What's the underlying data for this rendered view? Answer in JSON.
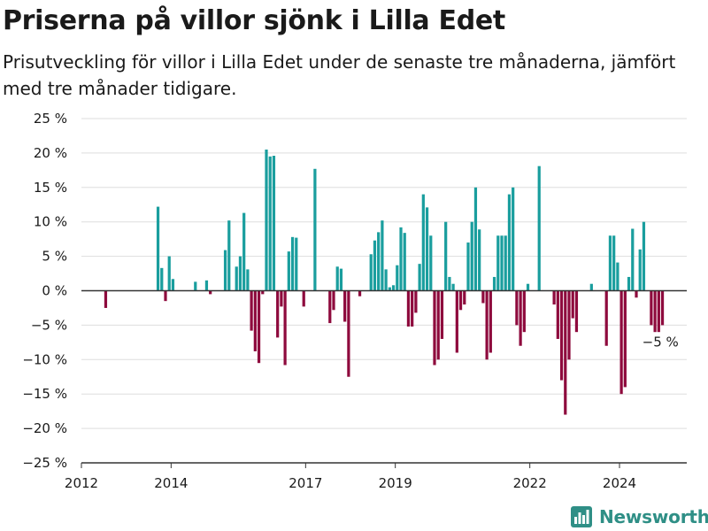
{
  "colors": {
    "positive": "#1a9e9e",
    "negative": "#8e0a3d",
    "grid": "#dddddd",
    "axis": "#333333",
    "brand": "#2f8f86"
  },
  "brand": {
    "name": "Newsworthy",
    "icon": "bar-chart-logo-icon"
  },
  "chart_data": {
    "type": "bar",
    "title": "Priserna på villor sjönk i Lilla Edet",
    "subtitle": "Prisutveckling för villor i Lilla Edet under de senaste tre månaderna, jämfört med tre månader tidigare.",
    "xlabel": "",
    "ylabel": "",
    "ylim": [
      -25,
      25
    ],
    "yticks": [
      -25,
      -20,
      -15,
      -10,
      -5,
      0,
      5,
      10,
      15,
      20,
      25
    ],
    "ytick_labels": [
      "−25 %",
      "−20 %",
      "−15 %",
      "−10 %",
      "−5 %",
      "0 %",
      "5 %",
      "10 %",
      "15 %",
      "20 %",
      "25 %"
    ],
    "xlim": [
      "2012-01",
      "2025-07"
    ],
    "xticks": [
      "2012-01",
      "2014-01",
      "2017-01",
      "2019-01",
      "2022-01",
      "2024-01"
    ],
    "xtick_labels": [
      "2012",
      "2014",
      "2017",
      "2019",
      "2022",
      "2024"
    ],
    "grid": "horizontal",
    "annotation": {
      "text": "−5 %",
      "x": "2024-11",
      "y": -5
    },
    "series": [
      {
        "data": [
          [
            "2012-07",
            -2.5
          ],
          [
            "2013-09",
            12.2
          ],
          [
            "2013-10",
            3.3
          ],
          [
            "2013-11",
            -1.5
          ],
          [
            "2013-12",
            5.0
          ],
          [
            "2014-01",
            1.7
          ],
          [
            "2014-07",
            1.3
          ],
          [
            "2014-10",
            1.5
          ],
          [
            "2014-11",
            -0.5
          ],
          [
            "2015-03",
            5.9
          ],
          [
            "2015-04",
            10.2
          ],
          [
            "2015-06",
            3.5
          ],
          [
            "2015-07",
            5.0
          ],
          [
            "2015-08",
            11.3
          ],
          [
            "2015-09",
            3.1
          ],
          [
            "2015-10",
            -5.8
          ],
          [
            "2015-11",
            -8.8
          ],
          [
            "2015-12",
            -10.5
          ],
          [
            "2016-01",
            -0.5
          ],
          [
            "2016-02",
            20.5
          ],
          [
            "2016-03",
            19.5
          ],
          [
            "2016-04",
            19.6
          ],
          [
            "2016-05",
            -6.8
          ],
          [
            "2016-06",
            -2.3
          ],
          [
            "2016-07",
            -10.8
          ],
          [
            "2016-08",
            5.7
          ],
          [
            "2016-09",
            7.8
          ],
          [
            "2016-10",
            7.7
          ],
          [
            "2016-12",
            -2.3
          ],
          [
            "2017-03",
            17.7
          ],
          [
            "2017-07",
            -4.7
          ],
          [
            "2017-08",
            -2.8
          ],
          [
            "2017-09",
            3.5
          ],
          [
            "2017-10",
            3.2
          ],
          [
            "2017-11",
            -4.5
          ],
          [
            "2017-12",
            -12.5
          ],
          [
            "2018-03",
            -0.8
          ],
          [
            "2018-06",
            5.3
          ],
          [
            "2018-07",
            7.3
          ],
          [
            "2018-08",
            8.5
          ],
          [
            "2018-09",
            10.2
          ],
          [
            "2018-10",
            3.1
          ],
          [
            "2018-11",
            0.5
          ],
          [
            "2018-12",
            0.8
          ],
          [
            "2019-01",
            3.7
          ],
          [
            "2019-02",
            9.2
          ],
          [
            "2019-03",
            8.4
          ],
          [
            "2019-04",
            -5.2
          ],
          [
            "2019-05",
            -5.2
          ],
          [
            "2019-06",
            -3.2
          ],
          [
            "2019-07",
            3.9
          ],
          [
            "2019-08",
            14.0
          ],
          [
            "2019-09",
            12.1
          ],
          [
            "2019-10",
            8.0
          ],
          [
            "2019-11",
            -10.8
          ],
          [
            "2019-12",
            -10.0
          ],
          [
            "2020-01",
            -7.0
          ],
          [
            "2020-02",
            10.0
          ],
          [
            "2020-03",
            2.0
          ],
          [
            "2020-04",
            1.0
          ],
          [
            "2020-05",
            -9.0
          ],
          [
            "2020-06",
            -2.8
          ],
          [
            "2020-07",
            -2.0
          ],
          [
            "2020-08",
            7.0
          ],
          [
            "2020-09",
            10.0
          ],
          [
            "2020-10",
            15.0
          ],
          [
            "2020-11",
            8.9
          ],
          [
            "2020-12",
            -1.8
          ],
          [
            "2021-01",
            -10.0
          ],
          [
            "2021-02",
            -9.0
          ],
          [
            "2021-03",
            2.0
          ],
          [
            "2021-04",
            8.0
          ],
          [
            "2021-05",
            8.0
          ],
          [
            "2021-06",
            8.0
          ],
          [
            "2021-07",
            14.0
          ],
          [
            "2021-08",
            15.0
          ],
          [
            "2021-09",
            -5.0
          ],
          [
            "2021-10",
            -8.0
          ],
          [
            "2021-11",
            -6.0
          ],
          [
            "2021-12",
            1.0
          ],
          [
            "2022-03",
            18.1
          ],
          [
            "2022-07",
            -2.0
          ],
          [
            "2022-08",
            -7.0
          ],
          [
            "2022-09",
            -13.0
          ],
          [
            "2022-10",
            -18.0
          ],
          [
            "2022-11",
            -10.0
          ],
          [
            "2022-12",
            -4.0
          ],
          [
            "2023-01",
            -6.0
          ],
          [
            "2023-05",
            1.0
          ],
          [
            "2023-09",
            -8.0
          ],
          [
            "2023-10",
            8.0
          ],
          [
            "2023-11",
            8.0
          ],
          [
            "2023-12",
            4.1
          ],
          [
            "2024-01",
            -15.0
          ],
          [
            "2024-02",
            -14.0
          ],
          [
            "2024-03",
            2.0
          ],
          [
            "2024-04",
            9.0
          ],
          [
            "2024-05",
            -1.0
          ],
          [
            "2024-06",
            6.0
          ],
          [
            "2024-07",
            10.0
          ],
          [
            "2024-09",
            -5.0
          ],
          [
            "2024-10",
            -6.0
          ],
          [
            "2024-11",
            -6.0
          ],
          [
            "2024-12",
            -5.0
          ]
        ]
      }
    ]
  }
}
